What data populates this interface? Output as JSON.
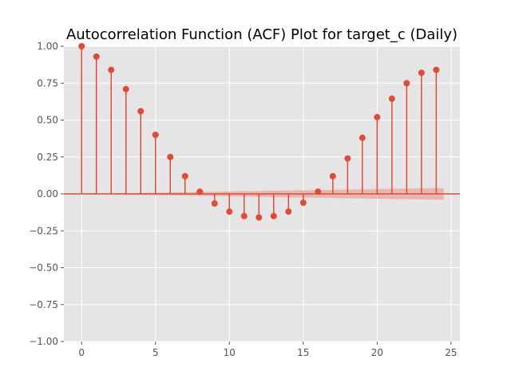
{
  "chart_data": {
    "type": "stem",
    "title": "Autocorrelation Function (ACF) Plot for target_c (Daily)",
    "xlabel": "",
    "ylabel": "",
    "xlim": [
      -1.2,
      25.6
    ],
    "ylim": [
      -1.0,
      1.0
    ],
    "xticks": [
      0,
      5,
      10,
      15,
      20,
      25
    ],
    "yticks": [
      -1.0,
      -0.75,
      -0.5,
      -0.25,
      0.0,
      0.25,
      0.5,
      0.75,
      1.0
    ],
    "xtick_labels": [
      "0",
      "5",
      "10",
      "15",
      "20",
      "25"
    ],
    "ytick_labels": [
      "−1.00",
      "−0.75",
      "−0.50",
      "−0.25",
      "0.00",
      "0.25",
      "0.50",
      "0.75",
      "1.00"
    ],
    "grid": true,
    "series": [
      {
        "x": [
          0,
          1,
          2,
          3,
          4,
          5,
          6,
          7,
          8,
          9,
          10,
          11,
          12,
          13,
          14,
          15,
          16,
          17,
          18,
          19,
          20,
          21,
          22,
          23,
          24
        ],
        "values": [
          1.0,
          0.93,
          0.84,
          0.71,
          0.56,
          0.4,
          0.25,
          0.12,
          0.015,
          -0.065,
          -0.12,
          -0.15,
          -0.16,
          -0.15,
          -0.12,
          -0.06,
          0.015,
          0.12,
          0.24,
          0.38,
          0.52,
          0.645,
          0.75,
          0.82,
          0.84
        ]
      }
    ],
    "confidence_band": {
      "x": [
        0,
        24.5
      ],
      "lower": [
        -0.0,
        -0.04
      ],
      "upper": [
        0.0,
        0.04
      ]
    },
    "colors": {
      "background": "#e5e5e5",
      "grid": "#ffffff",
      "stem": "#e24a33",
      "band": "#e8a598",
      "zero_line": "#e24a33"
    }
  }
}
